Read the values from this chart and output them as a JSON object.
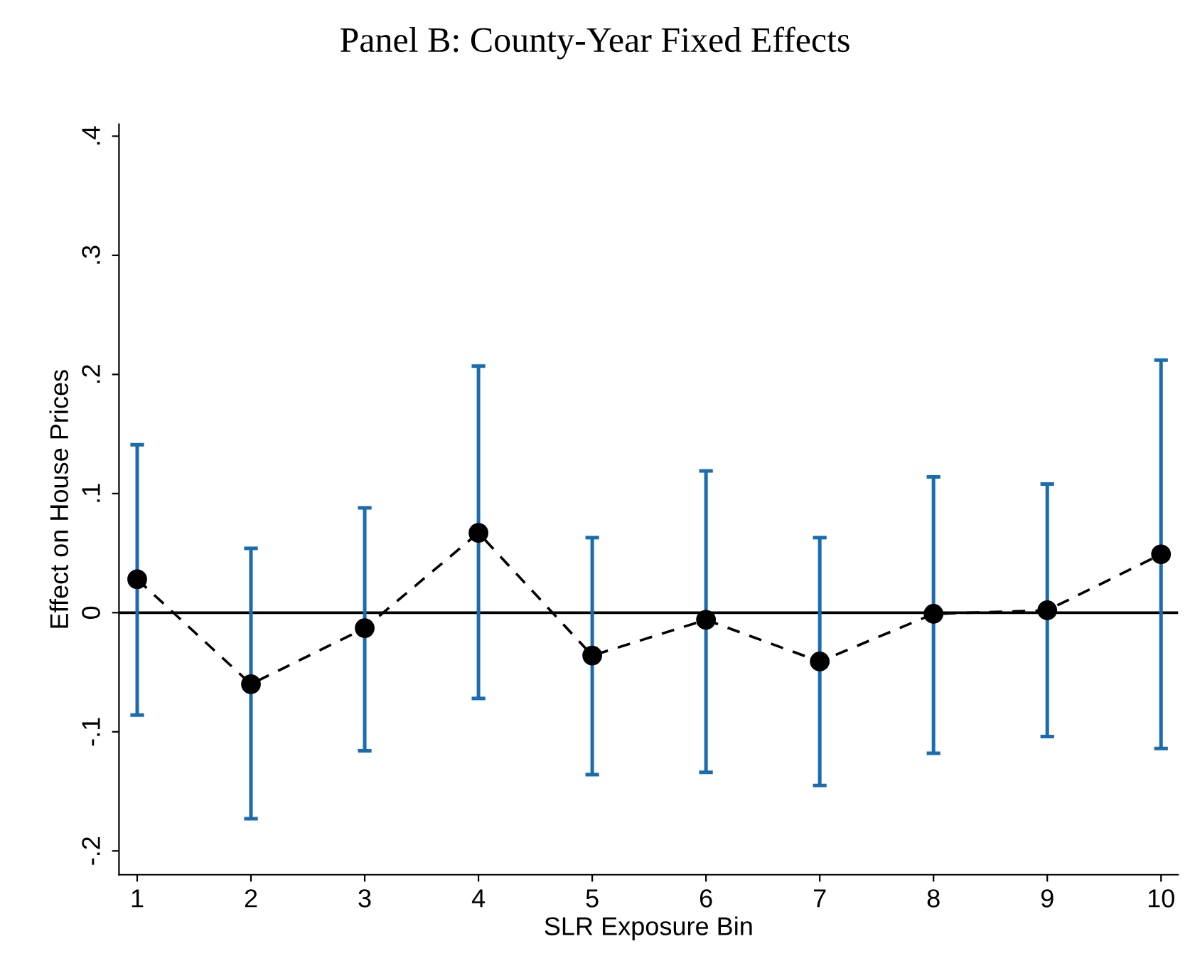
{
  "chart_data": {
    "type": "line",
    "title": "Panel B: County-Year Fixed Effects",
    "xlabel": "SLR Exposure Bin",
    "ylabel": "Effect on House Prices",
    "x": [
      1,
      2,
      3,
      4,
      5,
      6,
      7,
      8,
      9,
      10
    ],
    "values": [
      0.028,
      -0.06,
      -0.013,
      0.067,
      -0.036,
      -0.006,
      -0.041,
      -0.001,
      0.002,
      0.049
    ],
    "errors": [
      [
        -0.086,
        0.141
      ],
      [
        -0.173,
        0.054
      ],
      [
        -0.116,
        0.088
      ],
      [
        -0.072,
        0.207
      ],
      [
        -0.136,
        0.063
      ],
      [
        -0.134,
        0.119
      ],
      [
        -0.145,
        0.063
      ],
      [
        -0.118,
        0.114
      ],
      [
        -0.104,
        0.108
      ],
      [
        -0.114,
        0.212
      ]
    ],
    "color": "#000000",
    "marker": "circle",
    "line_style": "dashed",
    "xlim": [
      0.84,
      10.15
    ],
    "xticks": [
      1,
      2,
      3,
      4,
      5,
      6,
      7,
      8,
      9,
      10
    ],
    "ylim": [
      -0.22,
      0.41
    ],
    "yticks": [
      {
        "value": -0.2,
        "label": "-.2"
      },
      {
        "value": -0.1,
        "label": "-.1"
      },
      0,
      {
        "value": 0.1,
        "label": ".1"
      },
      {
        "value": 0.2,
        "label": ".2"
      },
      {
        "value": 0.3,
        "label": ".3"
      },
      {
        "value": 0.4,
        "label": ".4"
      }
    ],
    "ref_lines": [
      {
        "axis": "y",
        "value": 0,
        "color": "#000000"
      }
    ],
    "grid": false,
    "legend": false
  }
}
